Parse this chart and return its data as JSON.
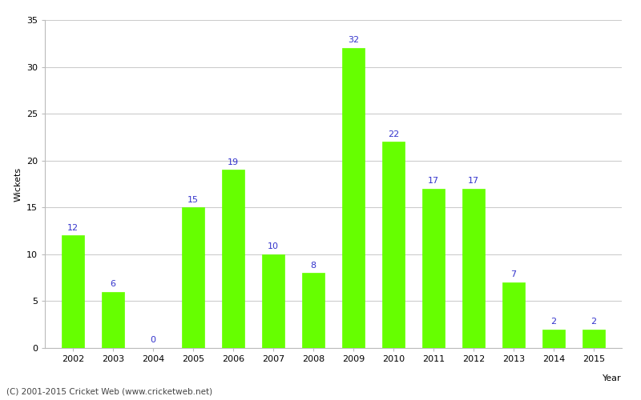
{
  "years": [
    2002,
    2003,
    2004,
    2005,
    2006,
    2007,
    2008,
    2009,
    2010,
    2011,
    2012,
    2013,
    2014,
    2015
  ],
  "wickets": [
    12,
    6,
    0,
    15,
    19,
    10,
    8,
    32,
    22,
    17,
    17,
    7,
    2,
    2
  ],
  "bar_color": "#66ff00",
  "label_color": "#3333cc",
  "title": "",
  "xlabel": "Year",
  "ylabel": "Wickets",
  "ylim": [
    0,
    35
  ],
  "yticks": [
    0,
    5,
    10,
    15,
    20,
    25,
    30,
    35
  ],
  "footnote": "(C) 2001-2015 Cricket Web (www.cricketweb.net)",
  "bar_width": 0.55,
  "label_fontsize": 8,
  "axis_fontsize": 8,
  "footnote_fontsize": 7.5,
  "background_color": "#ffffff",
  "grid_color": "#cccccc"
}
